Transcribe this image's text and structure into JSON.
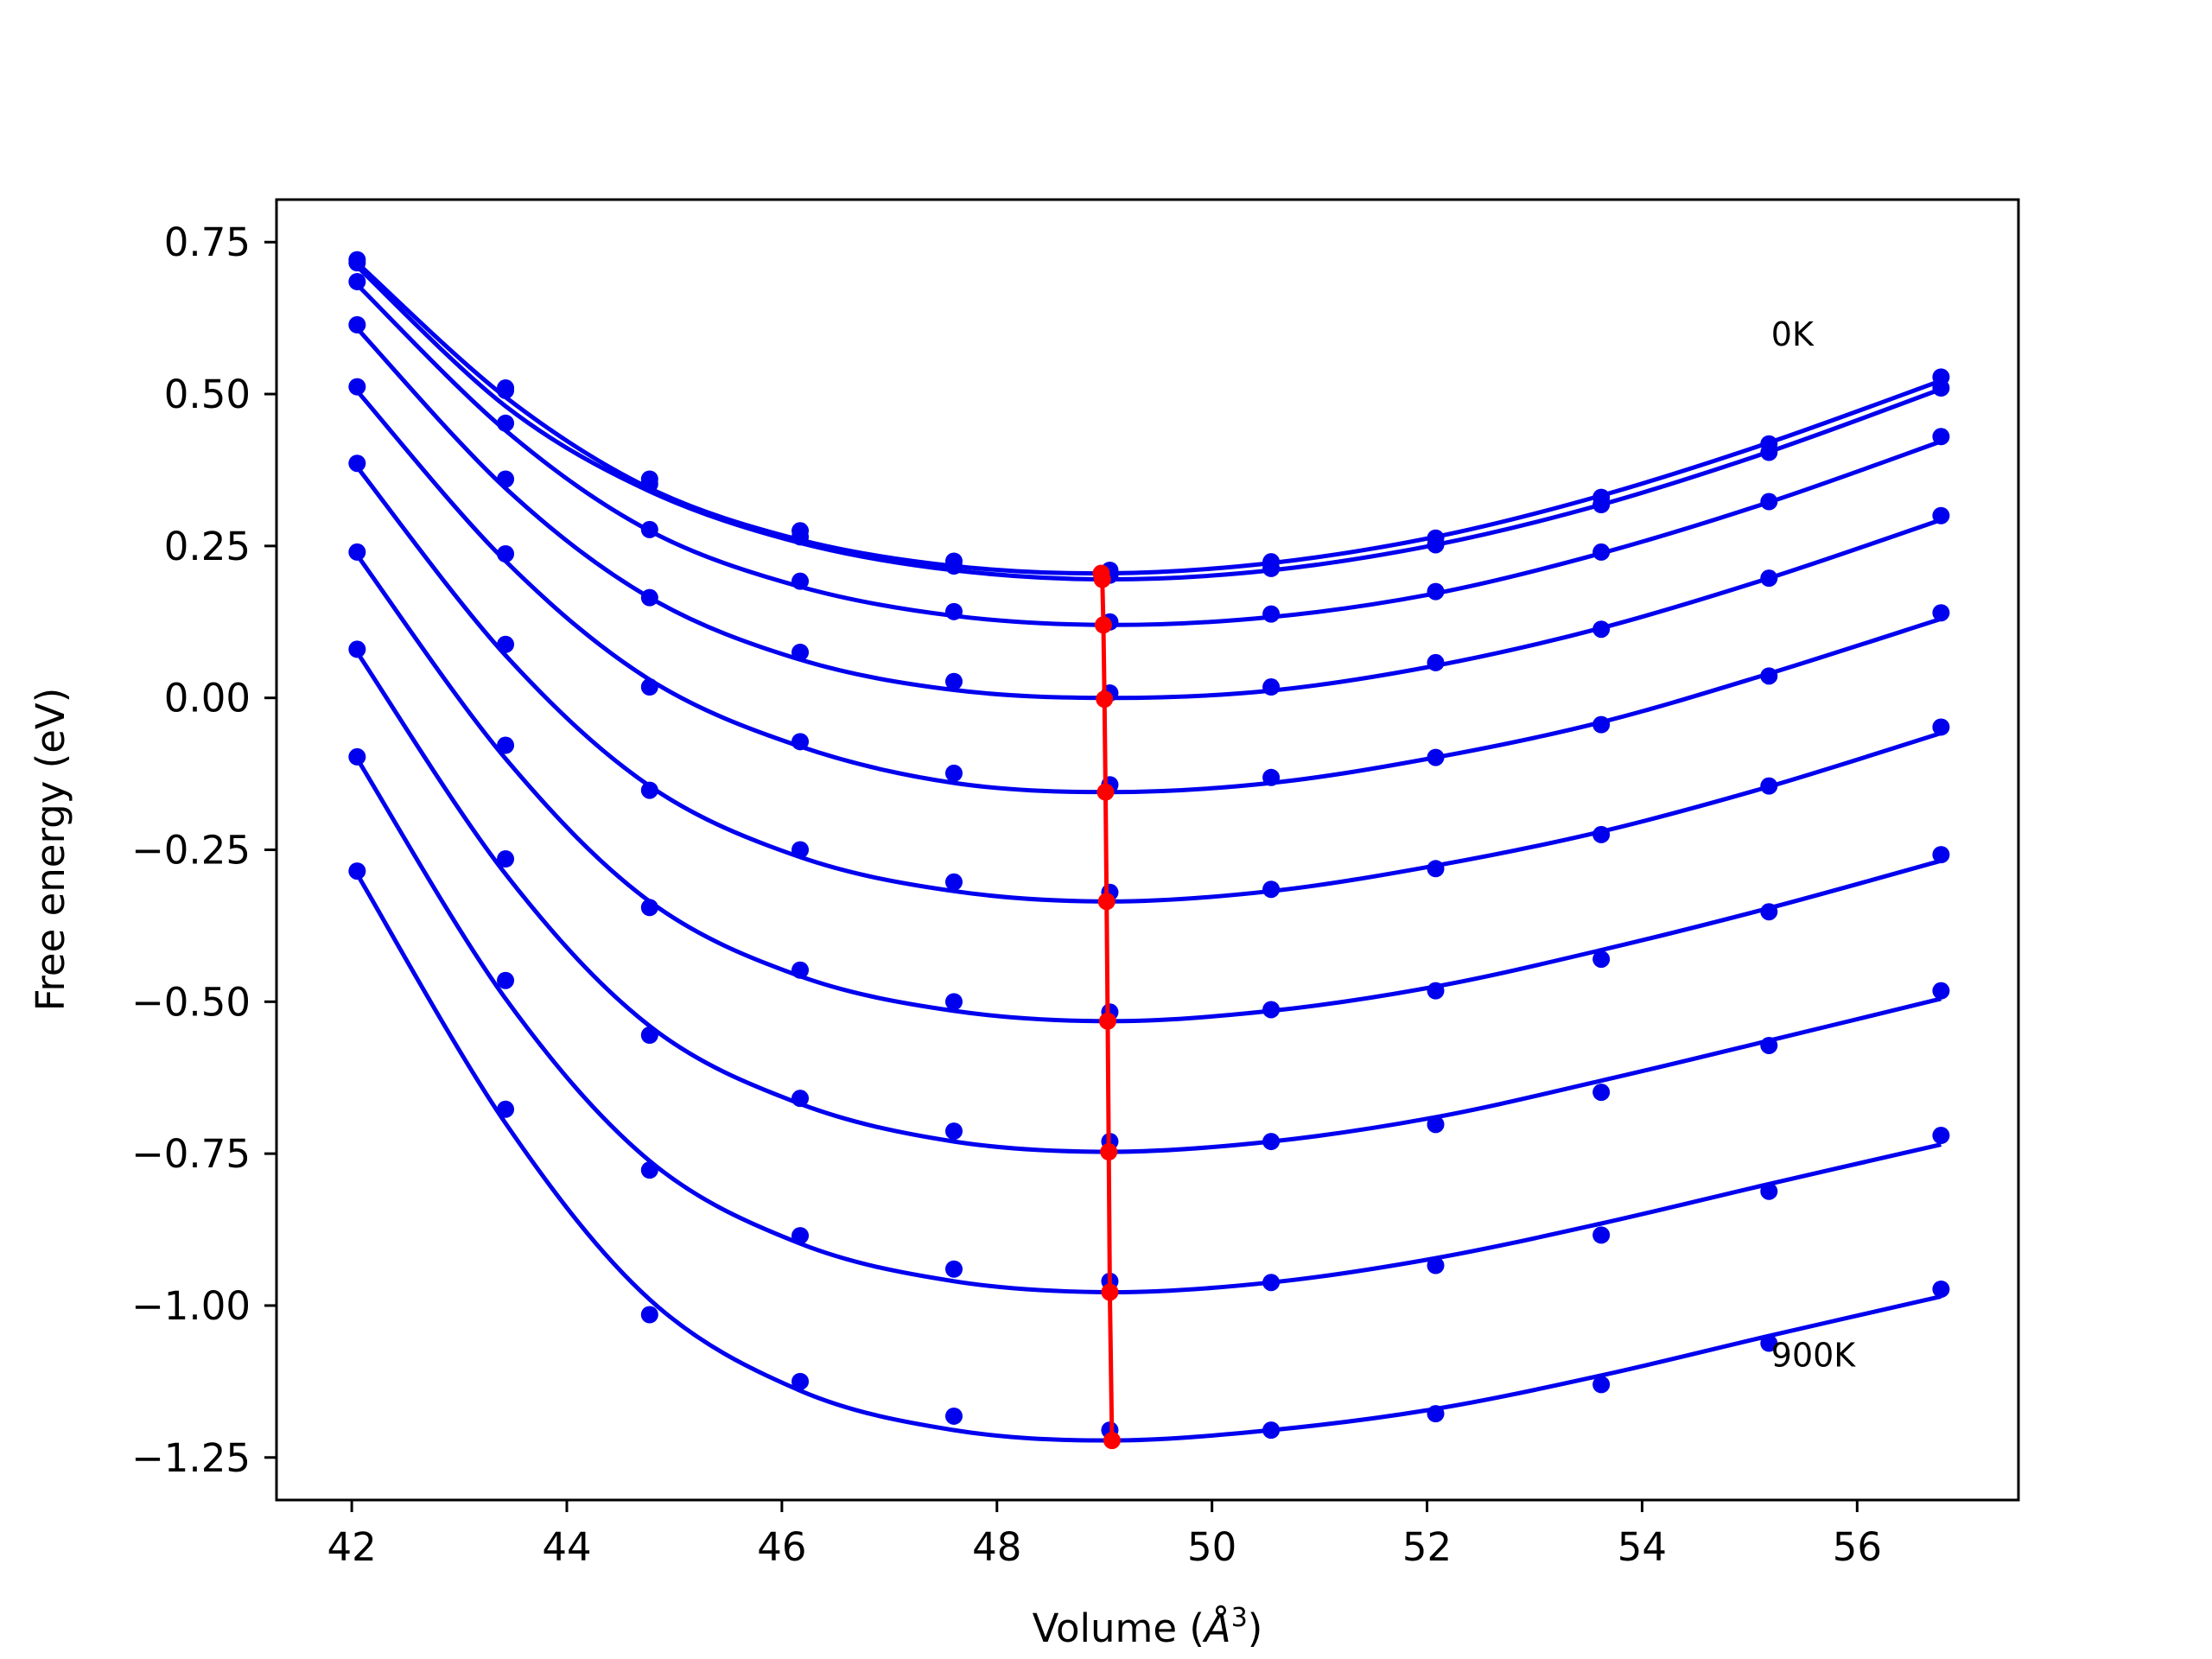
{
  "chart_data": {
    "type": "scatter",
    "title": "",
    "xlabel": "Volume (",
    "xlabel_symbol": "Å",
    "xlabel_power": "3",
    "xlabel_end": ")",
    "ylabel": "Free energy (eV)",
    "xlim": [
      41.3,
      57.5
    ],
    "ylim": [
      -1.32,
      0.82
    ],
    "x_ticks": [
      42,
      44,
      46,
      48,
      50,
      52,
      54,
      56
    ],
    "x_tick_labels": [
      "42",
      "44",
      "46",
      "48",
      "50",
      "52",
      "54",
      "56"
    ],
    "y_ticks": [
      0.75,
      0.5,
      0.25,
      0.0,
      -0.25,
      -0.5,
      -0.75,
      -1.0,
      -1.25
    ],
    "y_tick_labels": [
      "0.75",
      "0.50",
      "0.25",
      "0.00",
      "−0.25",
      "−0.50",
      "−0.75",
      "−1.00",
      "−1.25"
    ],
    "grid": false,
    "legend": false,
    "colors": {
      "series": "#0000ee",
      "equilibrium": "#ff0000"
    },
    "annotations": [
      {
        "text": "0K",
        "x": 55.2,
        "y": 0.58
      },
      {
        "text": "900K",
        "x": 55.2,
        "y": -1.1
      }
    ],
    "x": [
      42.05,
      43.43,
      44.77,
      46.17,
      47.6,
      49.05,
      50.55,
      52.08,
      53.62,
      55.18,
      56.78
    ],
    "series": [
      {
        "points": [
          0.721,
          0.51,
          0.36,
          0.275,
          0.225,
          0.21,
          0.224,
          0.263,
          0.33,
          0.418,
          0.528
        ],
        "fit": [
          0.716,
          0.495,
          0.345,
          0.26,
          0.217,
          0.205,
          0.222,
          0.265,
          0.333,
          0.42,
          0.522
        ]
      },
      {
        "points": [
          0.716,
          0.506,
          0.352,
          0.265,
          0.217,
          0.202,
          0.213,
          0.252,
          0.318,
          0.404,
          0.51
        ],
        "fit": [
          0.71,
          0.48,
          0.34,
          0.255,
          0.21,
          0.195,
          0.21,
          0.252,
          0.318,
          0.405,
          0.508
        ]
      },
      {
        "points": [
          0.685,
          0.452,
          0.277,
          0.192,
          0.142,
          0.125,
          0.138,
          0.175,
          0.24,
          0.323,
          0.43
        ],
        "fit": [
          0.68,
          0.44,
          0.275,
          0.183,
          0.135,
          0.12,
          0.133,
          0.172,
          0.238,
          0.322,
          0.422
        ]
      },
      {
        "points": [
          0.614,
          0.36,
          0.165,
          0.075,
          0.027,
          0.008,
          0.018,
          0.058,
          0.113,
          0.197,
          0.3
        ],
        "fit": [
          0.608,
          0.345,
          0.165,
          0.063,
          0.013,
          0.0,
          0.012,
          0.053,
          0.115,
          0.197,
          0.293
        ]
      },
      {
        "points": [
          0.512,
          0.237,
          0.018,
          -0.072,
          -0.124,
          -0.143,
          -0.131,
          -0.098,
          -0.044,
          0.036,
          0.14
        ],
        "fit": [
          0.505,
          0.225,
          0.03,
          -0.08,
          -0.14,
          -0.155,
          -0.14,
          -0.098,
          -0.04,
          0.04,
          0.13
        ]
      },
      {
        "points": [
          0.386,
          0.088,
          -0.152,
          -0.25,
          -0.303,
          -0.32,
          -0.315,
          -0.281,
          -0.225,
          -0.145,
          -0.048
        ],
        "fit": [
          0.38,
          0.07,
          -0.145,
          -0.262,
          -0.318,
          -0.335,
          -0.318,
          -0.276,
          -0.22,
          -0.146,
          -0.058
        ]
      },
      {
        "points": [
          0.24,
          -0.078,
          -0.345,
          -0.448,
          -0.5,
          -0.517,
          -0.513,
          -0.482,
          -0.43,
          -0.352,
          -0.258
        ],
        "fit": [
          0.235,
          -0.1,
          -0.335,
          -0.458,
          -0.515,
          -0.532,
          -0.515,
          -0.475,
          -0.415,
          -0.346,
          -0.268
        ]
      },
      {
        "points": [
          0.08,
          -0.265,
          -0.555,
          -0.659,
          -0.713,
          -0.73,
          -0.73,
          -0.702,
          -0.649,
          -0.572,
          -0.482
        ],
        "fit": [
          0.075,
          -0.29,
          -0.54,
          -0.668,
          -0.73,
          -0.747,
          -0.73,
          -0.69,
          -0.63,
          -0.564,
          -0.495
        ]
      },
      {
        "points": [
          -0.097,
          -0.465,
          -0.777,
          -0.885,
          -0.94,
          -0.96,
          -0.962,
          -0.934,
          -0.884,
          -0.812,
          -0.72
        ],
        "fit": [
          -0.1,
          -0.495,
          -0.762,
          -0.898,
          -0.96,
          -0.978,
          -0.962,
          -0.922,
          -0.865,
          -0.8,
          -0.735
        ]
      },
      {
        "points": [
          -0.285,
          -0.677,
          -1.015,
          -1.125,
          -1.182,
          -1.205,
          -1.205,
          -1.178,
          -1.13,
          -1.062,
          -0.973
        ],
        "fit": [
          -0.29,
          -0.7,
          -0.99,
          -1.14,
          -1.205,
          -1.222,
          -1.205,
          -1.17,
          -1.115,
          -1.05,
          -0.985
        ]
      }
    ],
    "equilibrium": {
      "x": [
        48.97,
        48.98,
        48.99,
        49.0,
        49.01,
        49.02,
        49.03,
        49.04,
        49.05,
        49.07
      ],
      "y": [
        0.205,
        0.195,
        0.12,
        -0.002,
        -0.155,
        -0.335,
        -0.532,
        -0.747,
        -0.978,
        -1.222
      ]
    }
  }
}
